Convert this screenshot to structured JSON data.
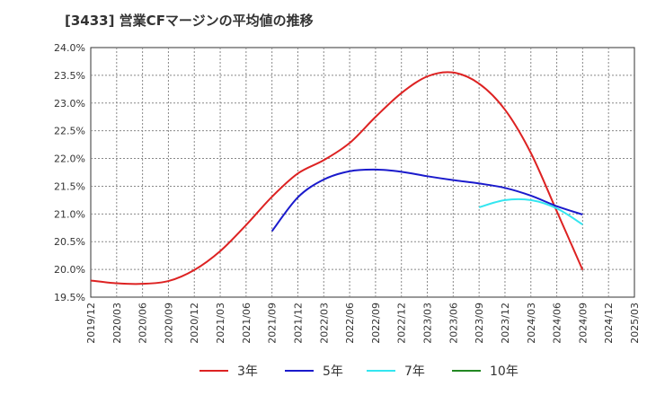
{
  "chart_data": {
    "type": "line",
    "title": "[3433]  営業CFマージンの平均値の推移",
    "x_ticks": [
      "2019/12",
      "2020/03",
      "2020/06",
      "2020/09",
      "2020/12",
      "2021/03",
      "2021/06",
      "2021/09",
      "2021/12",
      "2022/03",
      "2022/06",
      "2022/09",
      "2022/12",
      "2023/03",
      "2023/06",
      "2023/09",
      "2023/12",
      "2024/03",
      "2024/06",
      "2024/09",
      "2024/12",
      "2025/03"
    ],
    "y_ticks": [
      "24.0%",
      "23.5%",
      "23.0%",
      "22.5%",
      "22.0%",
      "21.5%",
      "21.0%",
      "20.5%",
      "20.0%",
      "19.5%"
    ],
    "ylim": [
      19.5,
      24.0
    ],
    "grid": true,
    "legend_position": "bottom",
    "series": [
      {
        "name": "3年",
        "color": "#dd2222",
        "x": [
          "2019/12",
          "2020/03",
          "2020/06",
          "2020/09",
          "2020/12",
          "2021/03",
          "2021/06",
          "2021/09",
          "2021/12",
          "2022/03",
          "2022/06",
          "2022/09",
          "2022/12",
          "2023/03",
          "2023/06",
          "2023/09",
          "2023/12",
          "2024/03",
          "2024/06",
          "2024/09"
        ],
        "values": [
          19.8,
          19.75,
          19.74,
          19.79,
          19.99,
          20.33,
          20.8,
          21.31,
          21.73,
          21.97,
          22.28,
          22.75,
          23.18,
          23.48,
          23.55,
          23.35,
          22.88,
          22.1,
          21.05,
          19.99
        ]
      },
      {
        "name": "5年",
        "color": "#1a1acc",
        "x": [
          "2021/09",
          "2021/12",
          "2022/03",
          "2022/06",
          "2022/09",
          "2022/12",
          "2023/03",
          "2023/06",
          "2023/09",
          "2023/12",
          "2024/03",
          "2024/06",
          "2024/09"
        ],
        "values": [
          20.69,
          21.3,
          21.62,
          21.77,
          21.8,
          21.76,
          21.68,
          21.61,
          21.55,
          21.47,
          21.33,
          21.14,
          20.99
        ]
      },
      {
        "name": "7年",
        "color": "#33e6f0",
        "x": [
          "2023/09",
          "2023/12",
          "2024/03",
          "2024/06",
          "2024/09"
        ],
        "values": [
          21.12,
          21.25,
          21.25,
          21.1,
          20.81
        ]
      },
      {
        "name": "10年",
        "color": "#228822",
        "x": [],
        "values": []
      }
    ]
  }
}
